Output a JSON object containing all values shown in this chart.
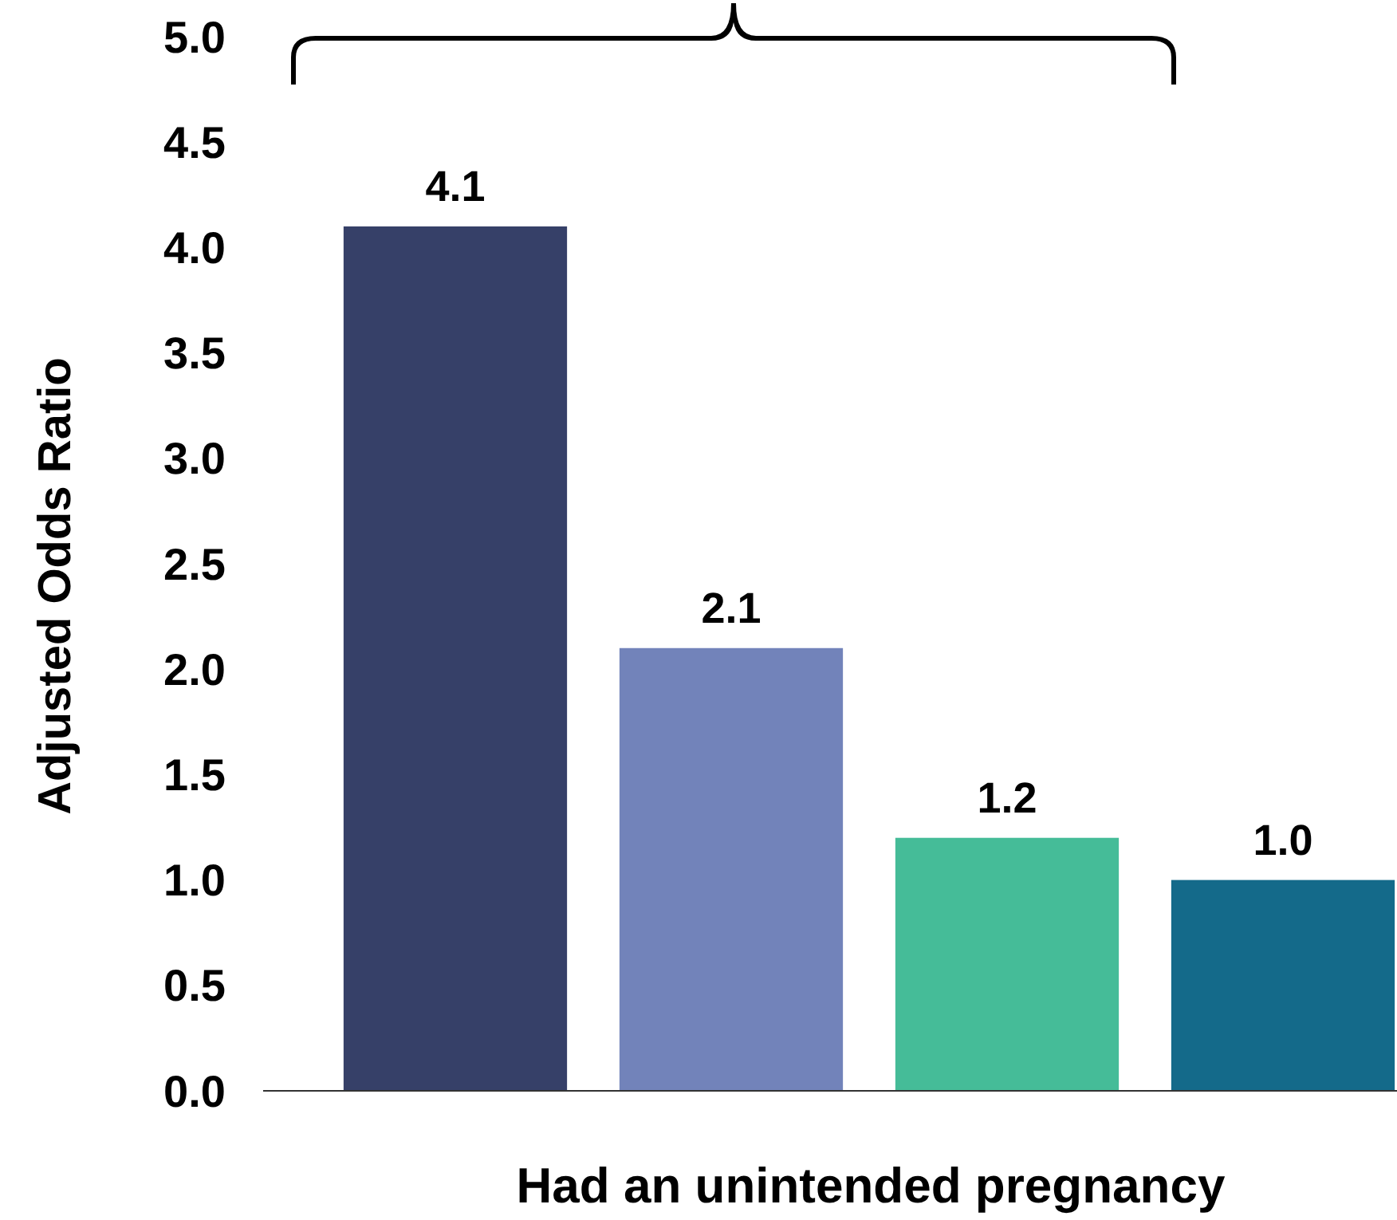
{
  "chart_data": {
    "type": "bar",
    "xlabel": "Had an unintended pregnancy",
    "ylabel": "Adjusted Odds Ratio",
    "categories": [
      null,
      null,
      null,
      null
    ],
    "values": [
      4.1,
      2.1,
      1.2,
      1.0
    ],
    "colors": [
      "#364068",
      "#7283ba",
      "#45bc98",
      "#146a8a"
    ],
    "ylim": [
      0,
      5
    ],
    "yticks": [
      {
        "value": 0,
        "label": "0.0"
      },
      {
        "value": 0.5,
        "label": "0.5"
      },
      {
        "value": 1,
        "label": "1.0"
      },
      {
        "value": 1.5,
        "label": "1.5"
      },
      {
        "value": 2,
        "label": "2.0"
      },
      {
        "value": 2.5,
        "label": "2.5"
      },
      {
        "value": 3,
        "label": "3.0"
      },
      {
        "value": 3.5,
        "label": "3.5"
      },
      {
        "value": 4,
        "label": "4.0"
      },
      {
        "value": 4.5,
        "label": "4.5"
      },
      {
        "value": 5,
        "label": "5.0"
      }
    ],
    "value_labels": [
      "4.1",
      "2.1",
      "1.2",
      "1.0"
    ],
    "grid": false
  }
}
